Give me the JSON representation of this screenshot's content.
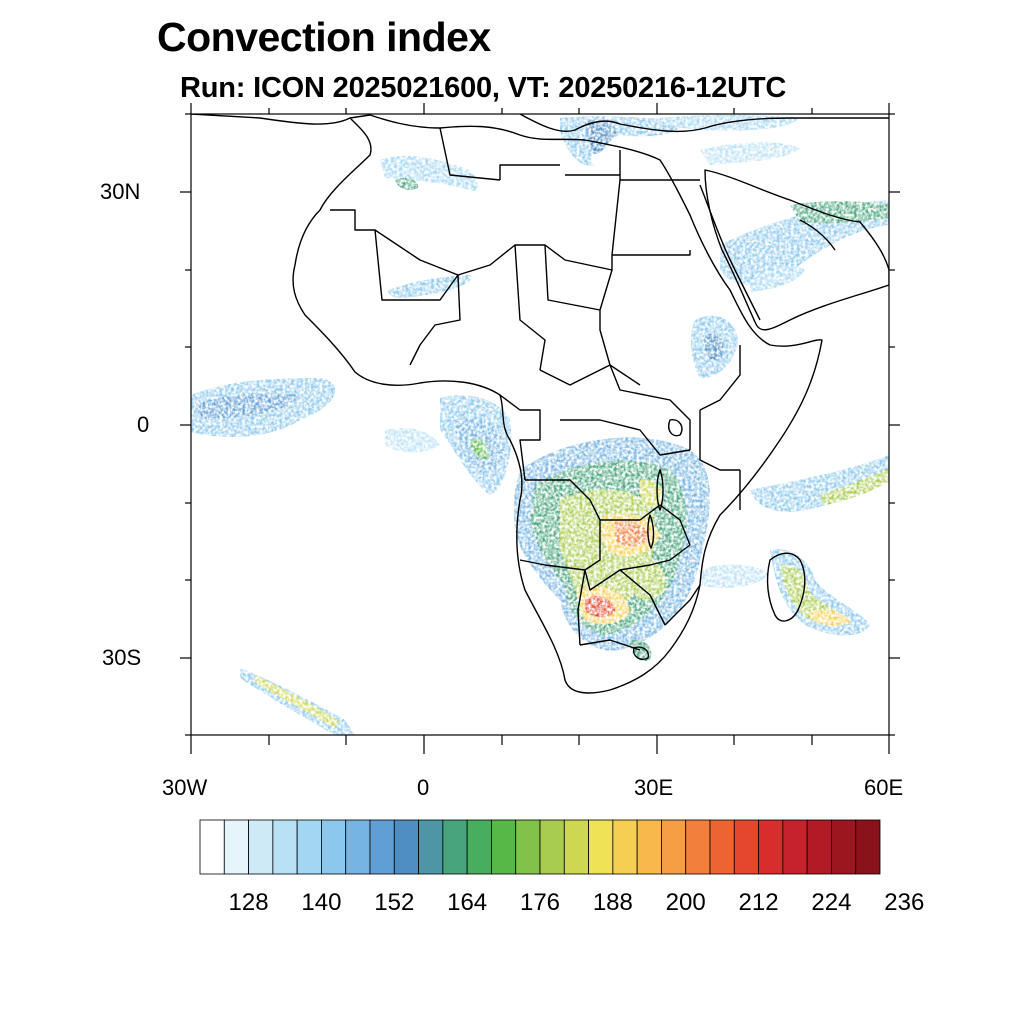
{
  "title": "Convection index",
  "subtitle": "Run: ICON 2025021600,  VT: 20250216-12UTC",
  "map": {
    "lon_range": [
      -30,
      60
    ],
    "lat_range": [
      -40,
      40
    ],
    "lat_labels": [
      "30N",
      "0",
      "30S"
    ],
    "lon_labels": [
      "30W",
      "0",
      "30E",
      "60E"
    ]
  },
  "colorbar": {
    "labels": [
      "128",
      "140",
      "152",
      "164",
      "176",
      "188",
      "200",
      "212",
      "224",
      "236"
    ],
    "colors": [
      "#ffffff",
      "#e6f4fb",
      "#cfeaf7",
      "#b9e1f6",
      "#a2d6f3",
      "#8cc8ed",
      "#76b4e3",
      "#5f9fd6",
      "#4f8ec3",
      "#4e96a6",
      "#47a47c",
      "#46ae5d",
      "#57b848",
      "#82c14a",
      "#a8cc4f",
      "#cdd752",
      "#efe257",
      "#f6cf52",
      "#f7b94c",
      "#f59e43",
      "#f27f3b",
      "#ed6432",
      "#e4472e",
      "#d72d2c",
      "#c5222b",
      "#b21a26",
      "#9c1620",
      "#8a121a"
    ]
  },
  "chart_data": {
    "type": "heatmap",
    "title": "Convection index",
    "subtitle": "Run: ICON 2025021600,  VT: 20250216-12UTC",
    "x_ticklabels": [
      "30W",
      "0",
      "30E",
      "60E"
    ],
    "y_ticklabels": [
      "30N",
      "0",
      "30S"
    ],
    "xlim": [
      -30,
      60
    ],
    "ylim": [
      -40,
      40
    ],
    "color_scale_ticks": [
      128,
      140,
      152,
      164,
      176,
      188,
      200,
      212,
      224,
      236
    ],
    "color_scale_min": 116,
    "color_scale_max": 242
  }
}
